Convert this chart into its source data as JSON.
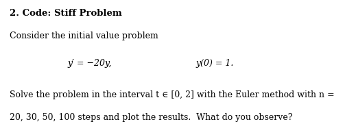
{
  "title": "2. Code: Stiff Problem",
  "line1": "Consider the initial value problem",
  "eq_left": "y′ = −20y,",
  "eq_right": "y(0) = 1.",
  "line3_part1": "Solve the problem in the interval ",
  "line3_t": "t",
  "line3_in": " ∈ ",
  "line3_interval": "[0, 2]",
  "line3_mid": " with the Euler method with ",
  "line3_n": "n",
  "line3_eq": " =",
  "line4": "20, 30, 50, 100 steps and plot the results.  What do you observe?",
  "bg_color": "#ffffff",
  "text_color": "#000000",
  "fig_width": 5.19,
  "fig_height": 1.81
}
